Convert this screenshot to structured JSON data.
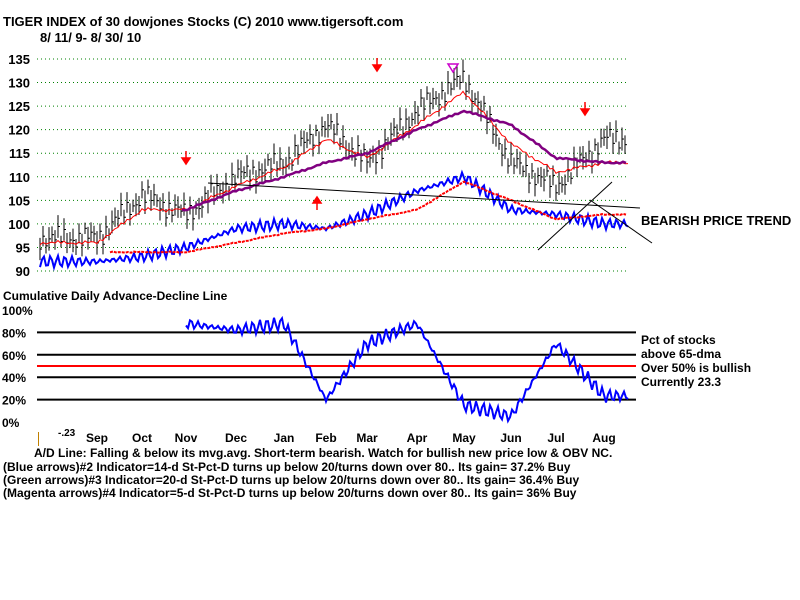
{
  "header": {
    "title": "TIGER INDEX of  30 dowjones Stocks  (C) 2010  www.tigersoft.com",
    "date_range": "8/ 11/ 9- 8/ 30/ 10"
  },
  "price_panel": {
    "y_ticks": [
      "135",
      "130",
      "125",
      "120",
      "115",
      "110",
      "105",
      "100",
      "95",
      "90"
    ],
    "trend_label": "BEARISH PRICE TREND"
  },
  "breadth_panel": {
    "title": "Cumulative Daily Advance-Decline Line",
    "y_ticks": [
      "100%",
      "80%",
      "60%",
      "40%",
      "20%",
      "0%"
    ],
    "legend_lines": [
      "Pct of stocks",
      "above 65-dma",
      "Over 50% is bullish",
      "Currently  23.3"
    ],
    "x_ticks": [
      "Sep",
      "Oct",
      "Nov",
      "Dec",
      "Jan",
      "Feb",
      "Mar",
      "Apr",
      "May",
      "Jun",
      "Jul",
      "Aug"
    ],
    "cut_label": "-.23"
  },
  "notes": [
    "A/D Line: Falling & below its mvg.avg. Short-term bearish. Watch for bullish new price low & OBV NC.",
    "(Blue arrows)#2 Indicator=14-d St-Pct-D turns up below 20/turns down over 80.. Its gain= 37.2% Buy",
    "(Green arrows)#3 Indicator=20-d St-Pct-D turns up below 20/turns down over 80.. Its gain= 36.4% Buy",
    "(Magenta arrows)#4 Indicator=5-d St-Pct-D turns up below 20/turns down over 80.. Its gain= 36% Buy"
  ],
  "colors": {
    "price_bars": "#000000",
    "ma_short": "#ff0000",
    "ma_long": "#800080",
    "ad_line": "#0000ff",
    "ad_ma": "#ff0000",
    "grid_dots": "#008000",
    "signal_arrows": "#ff0000"
  },
  "chart_data": [
    {
      "type": "line",
      "title": "TIGER INDEX of  30 dowjones Stocks  (C) 2010  www.tigersoft.com",
      "subtitle": "8/ 11/ 9- 8/ 30/ 10",
      "ylim": [
        90,
        137
      ],
      "grid": true,
      "x": [
        "Sep",
        "Oct",
        "Nov",
        "Dec",
        "Jan",
        "Feb",
        "Mar",
        "Apr",
        "May",
        "Jun",
        "Jul",
        "Aug"
      ],
      "series": [
        {
          "values": [
            97,
            106,
            102,
            110,
            113,
            121,
            113,
            124,
            131,
            113,
            108,
            118
          ]
        },
        {
          "values": [
            96,
            103,
            103,
            108,
            112,
            118,
            114,
            121,
            128,
            117,
            111,
            113
          ]
        },
        {
          "values": [
            null,
            null,
            103,
            107,
            110,
            113,
            115,
            120,
            124,
            121,
            114,
            113
          ]
        },
        {
          "values": [
            92,
            93,
            95,
            99,
            100,
            99,
            102,
            107,
            110,
            103,
            102,
            100
          ]
        },
        {
          "values": [
            null,
            null,
            94,
            96,
            98,
            99,
            101,
            103,
            109,
            105,
            101,
            102
          ]
        }
      ],
      "annotations": [
        "BEARISH PRICE TREND"
      ]
    },
    {
      "type": "line",
      "title": "Cumulative Daily Advance-Decline Line",
      "ylim": [
        0,
        100
      ],
      "yticks": [
        "100%",
        "80%",
        "60%",
        "40%",
        "20%",
        "0%"
      ],
      "reference_lines": [
        {
          "y": 50
        }
      ],
      "x": [
        "Sep",
        "Oct",
        "Nov",
        "Dec",
        "Jan",
        "Feb",
        "Mar",
        "Apr",
        "May",
        "Jun",
        "Jul",
        "Aug"
      ],
      "series": [
        {
          "name": "Pct of stocks above 65-dma",
          "values": [
            null,
            null,
            88,
            82,
            88,
            20,
            70,
            88,
            15,
            5,
            70,
            23.3
          ]
        }
      ],
      "annotations": [
        "Over 50% is bullish",
        "Currently  23.3"
      ]
    }
  ]
}
